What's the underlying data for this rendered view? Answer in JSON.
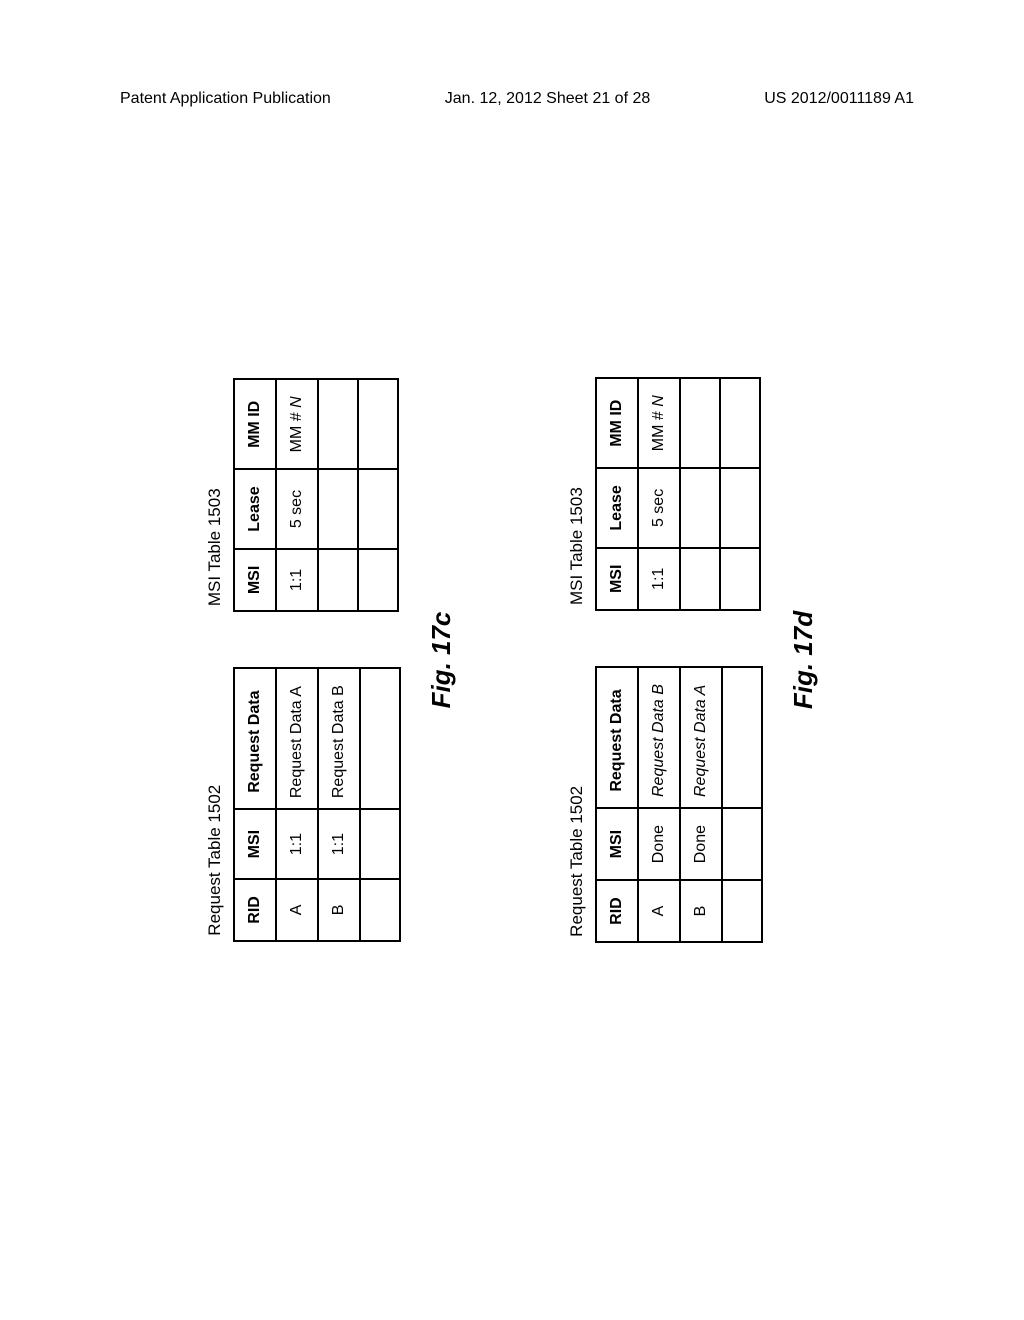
{
  "header": {
    "left": "Patent Application Publication",
    "center": "Jan. 12, 2012  Sheet 21 of 28",
    "right": "US 2012/0011189 A1"
  },
  "figure_c": {
    "label": "Fig. 17c",
    "request_table": {
      "title": "Request Table 1502",
      "columns": [
        "RID",
        "MSI",
        "Request Data"
      ],
      "rows": [
        {
          "rid": "A",
          "msi": "1:1",
          "data": "Request Data A",
          "italic": false
        },
        {
          "rid": "B",
          "msi": "1:1",
          "data": "Request Data B",
          "italic": false
        }
      ]
    },
    "msi_table": {
      "title": "MSI Table 1503",
      "columns": [
        "MSI",
        "Lease",
        "MM ID"
      ],
      "rows": [
        {
          "msi": "1:1",
          "lease": "5 sec",
          "mmid": "MM # N",
          "italic_mmid": true
        }
      ]
    }
  },
  "figure_d": {
    "label": "Fig. 17d",
    "request_table": {
      "title": "Request Table 1502",
      "columns": [
        "RID",
        "MSI",
        "Request Data"
      ],
      "rows": [
        {
          "rid": "A",
          "msi": "Done",
          "data": "Request Data B",
          "italic": true
        },
        {
          "rid": "B",
          "msi": "Done",
          "data": "Request Data A",
          "italic": true
        }
      ]
    },
    "msi_table": {
      "title": "MSI Table 1503",
      "columns": [
        "MSI",
        "Lease",
        "MM ID"
      ],
      "rows": [
        {
          "msi": "1:1",
          "lease": "5 sec",
          "mmid": "MM # N",
          "italic_mmid": true
        }
      ]
    }
  }
}
